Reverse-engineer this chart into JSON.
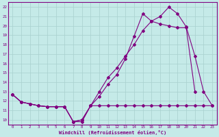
{
  "xlabel": "Windchill (Refroidissement éolien,°C)",
  "bg_color": "#c5eae8",
  "line_color": "#800080",
  "grid_color": "#a8d0ce",
  "xlim": [
    -0.5,
    23.5
  ],
  "ylim": [
    9.5,
    22.5
  ],
  "xticks": [
    0,
    1,
    2,
    3,
    4,
    5,
    6,
    7,
    8,
    9,
    10,
    11,
    12,
    13,
    14,
    15,
    16,
    17,
    18,
    19,
    20,
    21,
    22,
    23
  ],
  "yticks": [
    10,
    11,
    12,
    13,
    14,
    15,
    16,
    17,
    18,
    19,
    20,
    21,
    22
  ],
  "series1_x": [
    0,
    1,
    2,
    3,
    4,
    5,
    6,
    7,
    8,
    9,
    10,
    11,
    12,
    13,
    14,
    15,
    16,
    17,
    18,
    19,
    20,
    21,
    22,
    23
  ],
  "series1_y": [
    12.7,
    11.9,
    11.7,
    11.5,
    11.4,
    11.4,
    11.4,
    9.8,
    9.8,
    11.5,
    11.5,
    11.5,
    11.5,
    11.5,
    11.5,
    11.5,
    11.5,
    11.5,
    11.5,
    11.5,
    11.5,
    11.5,
    11.5,
    11.5
  ],
  "series2_x": [
    0,
    1,
    2,
    3,
    4,
    5,
    6,
    7,
    8,
    9,
    10,
    11,
    12,
    13,
    14,
    15,
    16,
    17,
    18,
    19,
    20,
    21
  ],
  "series2_y": [
    12.7,
    11.9,
    11.7,
    11.5,
    11.4,
    11.4,
    11.4,
    9.8,
    10.0,
    11.5,
    12.5,
    13.8,
    14.8,
    16.5,
    18.9,
    21.3,
    20.5,
    20.2,
    20.0,
    19.8,
    19.8,
    13.0
  ],
  "series3_x": [
    0,
    1,
    2,
    3,
    4,
    5,
    6,
    7,
    8,
    9,
    10,
    11,
    12,
    13,
    14,
    15,
    16,
    17,
    18,
    19,
    20,
    21,
    22,
    23
  ],
  "series3_y": [
    12.7,
    11.9,
    11.7,
    11.5,
    11.4,
    11.4,
    11.4,
    9.8,
    10.0,
    11.5,
    13.0,
    14.5,
    15.5,
    16.8,
    18.0,
    19.5,
    20.5,
    21.0,
    22.0,
    21.3,
    19.9,
    16.8,
    13.0,
    11.5
  ]
}
